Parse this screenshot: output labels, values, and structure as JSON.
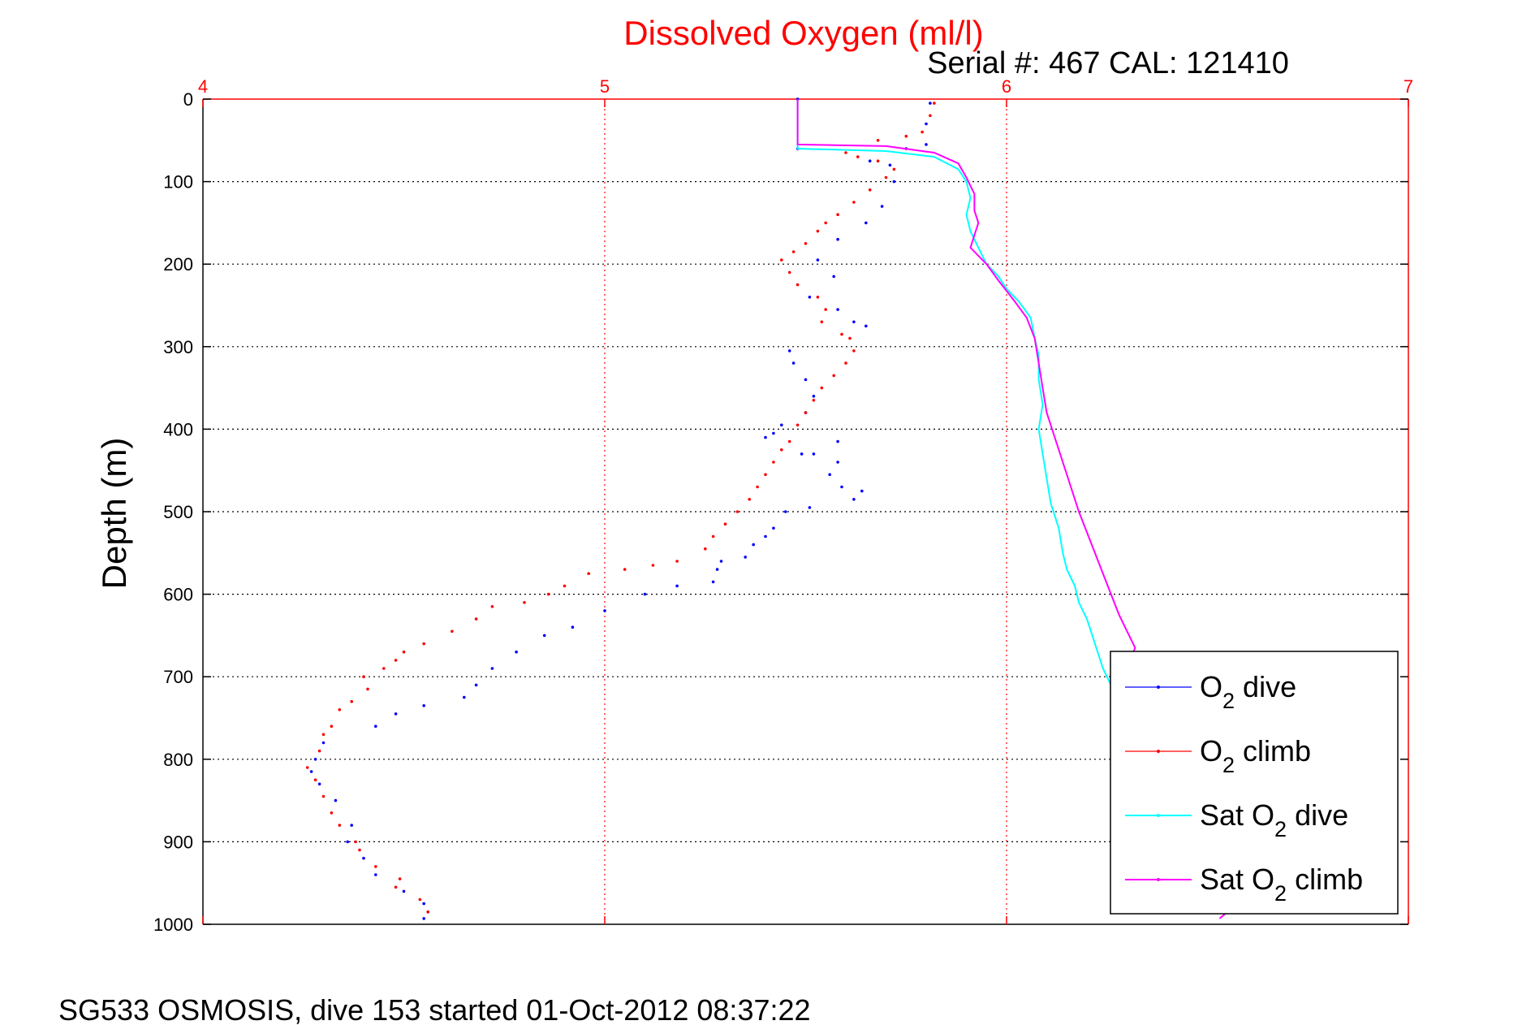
{
  "chart_data": {
    "type": "scatter",
    "title": "Dissolved Oxygen (ml/l)",
    "subtitle": "Serial #: 467  CAL: 121410",
    "xlabel": "",
    "ylabel": "Depth (m)",
    "footer": "SG533 OSMOSIS, dive 153 started 01-Oct-2012 08:37:22",
    "xlim": [
      4,
      7
    ],
    "ylim": [
      0,
      1000
    ],
    "y_reversed": true,
    "x_axis_position": "top",
    "x_ticks": [
      "4",
      "5",
      "6",
      "7"
    ],
    "x_tick_values": [
      4,
      5,
      6,
      7
    ],
    "y_ticks": [
      "0",
      "100",
      "200",
      "300",
      "400",
      "500",
      "600",
      "700",
      "800",
      "900",
      "1000"
    ],
    "y_tick_values": [
      0,
      100,
      200,
      300,
      400,
      500,
      600,
      700,
      800,
      900,
      1000
    ],
    "grid": true,
    "legend_position": "bottom-right",
    "series": [
      {
        "key": "o2_dive",
        "legend_main": "O",
        "legend_sub": "2",
        "legend_rest": " dive",
        "color": "#0000ff",
        "style": "dots",
        "points": [
          [
            5.48,
            0
          ],
          [
            5.48,
            60
          ],
          [
            5.75,
            60
          ],
          [
            5.8,
            55
          ],
          [
            5.8,
            30
          ],
          [
            5.81,
            5
          ],
          [
            5.71,
            80
          ],
          [
            5.66,
            75
          ],
          [
            5.72,
            100
          ],
          [
            5.69,
            130
          ],
          [
            5.65,
            150
          ],
          [
            5.58,
            170
          ],
          [
            5.53,
            195
          ],
          [
            5.57,
            215
          ],
          [
            5.51,
            240
          ],
          [
            5.58,
            255
          ],
          [
            5.62,
            270
          ],
          [
            5.65,
            275
          ],
          [
            5.46,
            305
          ],
          [
            5.47,
            320
          ],
          [
            5.5,
            340
          ],
          [
            5.52,
            360
          ],
          [
            5.5,
            380
          ],
          [
            5.44,
            395
          ],
          [
            5.4,
            410
          ],
          [
            5.42,
            405
          ],
          [
            5.58,
            415
          ],
          [
            5.58,
            440
          ],
          [
            5.52,
            430
          ],
          [
            5.49,
            430
          ],
          [
            5.56,
            455
          ],
          [
            5.59,
            470
          ],
          [
            5.62,
            485
          ],
          [
            5.64,
            475
          ],
          [
            5.51,
            495
          ],
          [
            5.45,
            500
          ],
          [
            5.42,
            520
          ],
          [
            5.4,
            530
          ],
          [
            5.37,
            540
          ],
          [
            5.35,
            555
          ],
          [
            5.29,
            560
          ],
          [
            5.28,
            570
          ],
          [
            5.27,
            585
          ],
          [
            5.18,
            590
          ],
          [
            5.1,
            600
          ],
          [
            5.0,
            620
          ],
          [
            4.92,
            640
          ],
          [
            4.85,
            650
          ],
          [
            4.78,
            670
          ],
          [
            4.72,
            690
          ],
          [
            4.68,
            710
          ],
          [
            4.65,
            725
          ],
          [
            4.55,
            735
          ],
          [
            4.48,
            745
          ],
          [
            4.43,
            760
          ],
          [
            4.3,
            780
          ],
          [
            4.28,
            800
          ],
          [
            4.27,
            815
          ],
          [
            4.29,
            830
          ],
          [
            4.33,
            850
          ],
          [
            4.37,
            880
          ],
          [
            4.36,
            900
          ],
          [
            4.4,
            920
          ],
          [
            4.43,
            940
          ],
          [
            4.5,
            960
          ],
          [
            4.55,
            975
          ],
          [
            4.56,
            985
          ],
          [
            4.55,
            993
          ]
        ]
      },
      {
        "key": "o2_climb",
        "legend_main": "O",
        "legend_sub": "2",
        "legend_rest": " climb",
        "color": "#ff0000",
        "style": "dots",
        "points": [
          [
            4.56,
            985
          ],
          [
            4.54,
            970
          ],
          [
            4.48,
            955
          ],
          [
            4.49,
            945
          ],
          [
            4.43,
            930
          ],
          [
            4.39,
            910
          ],
          [
            4.38,
            900
          ],
          [
            4.34,
            880
          ],
          [
            4.32,
            865
          ],
          [
            4.3,
            845
          ],
          [
            4.28,
            825
          ],
          [
            4.26,
            810
          ],
          [
            4.29,
            790
          ],
          [
            4.3,
            770
          ],
          [
            4.32,
            760
          ],
          [
            4.34,
            740
          ],
          [
            4.37,
            730
          ],
          [
            4.41,
            715
          ],
          [
            4.4,
            700
          ],
          [
            4.45,
            690
          ],
          [
            4.48,
            680
          ],
          [
            4.5,
            670
          ],
          [
            4.55,
            660
          ],
          [
            4.62,
            645
          ],
          [
            4.68,
            630
          ],
          [
            4.72,
            615
          ],
          [
            4.8,
            610
          ],
          [
            4.86,
            600
          ],
          [
            4.9,
            590
          ],
          [
            4.96,
            575
          ],
          [
            5.05,
            570
          ],
          [
            5.12,
            565
          ],
          [
            5.18,
            560
          ],
          [
            5.25,
            545
          ],
          [
            5.27,
            530
          ],
          [
            5.3,
            515
          ],
          [
            5.33,
            500
          ],
          [
            5.36,
            485
          ],
          [
            5.38,
            470
          ],
          [
            5.4,
            455
          ],
          [
            5.42,
            440
          ],
          [
            5.44,
            425
          ],
          [
            5.46,
            415
          ],
          [
            5.48,
            395
          ],
          [
            5.5,
            380
          ],
          [
            5.52,
            365
          ],
          [
            5.54,
            350
          ],
          [
            5.57,
            335
          ],
          [
            5.6,
            320
          ],
          [
            5.62,
            305
          ],
          [
            5.61,
            290
          ],
          [
            5.59,
            285
          ],
          [
            5.54,
            270
          ],
          [
            5.55,
            255
          ],
          [
            5.53,
            240
          ],
          [
            5.48,
            225
          ],
          [
            5.46,
            210
          ],
          [
            5.44,
            195
          ],
          [
            5.47,
            185
          ],
          [
            5.5,
            175
          ],
          [
            5.53,
            160
          ],
          [
            5.55,
            150
          ],
          [
            5.58,
            140
          ],
          [
            5.62,
            125
          ],
          [
            5.66,
            110
          ],
          [
            5.7,
            95
          ],
          [
            5.72,
            85
          ],
          [
            5.68,
            75
          ],
          [
            5.63,
            70
          ],
          [
            5.6,
            65
          ],
          [
            5.68,
            50
          ],
          [
            5.75,
            45
          ],
          [
            5.79,
            40
          ],
          [
            5.81,
            20
          ],
          [
            5.82,
            5
          ]
        ]
      },
      {
        "key": "sat_o2_dive",
        "legend_main": "Sat O",
        "legend_sub": "2",
        "legend_rest": " dive",
        "color": "#00ffff",
        "style": "line",
        "points": [
          [
            5.48,
            0
          ],
          [
            5.48,
            60
          ],
          [
            5.7,
            63
          ],
          [
            5.82,
            70
          ],
          [
            5.88,
            85
          ],
          [
            5.9,
            100
          ],
          [
            5.91,
            120
          ],
          [
            5.9,
            140
          ],
          [
            5.91,
            160
          ],
          [
            5.93,
            180
          ],
          [
            5.95,
            200
          ],
          [
            5.98,
            215
          ],
          [
            6.0,
            230
          ],
          [
            6.03,
            245
          ],
          [
            6.06,
            265
          ],
          [
            6.07,
            290
          ],
          [
            6.08,
            310
          ],
          [
            6.08,
            340
          ],
          [
            6.09,
            370
          ],
          [
            6.08,
            400
          ],
          [
            6.09,
            430
          ],
          [
            6.1,
            460
          ],
          [
            6.11,
            490
          ],
          [
            6.13,
            520
          ],
          [
            6.14,
            550
          ],
          [
            6.15,
            570
          ],
          [
            6.17,
            590
          ],
          [
            6.18,
            610
          ],
          [
            6.2,
            630
          ],
          [
            6.22,
            660
          ],
          [
            6.24,
            690
          ],
          [
            6.26,
            710
          ],
          [
            6.28,
            730
          ],
          [
            6.29,
            740
          ]
        ]
      },
      {
        "key": "sat_o2_climb",
        "legend_main": "Sat O",
        "legend_sub": "2",
        "legend_rest": " climb",
        "color": "#ff00ff",
        "style": "line",
        "points": [
          [
            5.48,
            0
          ],
          [
            5.48,
            55
          ],
          [
            5.7,
            57
          ],
          [
            5.82,
            65
          ],
          [
            5.88,
            78
          ],
          [
            5.9,
            95
          ],
          [
            5.92,
            115
          ],
          [
            5.92,
            135
          ],
          [
            5.93,
            150
          ],
          [
            5.92,
            165
          ],
          [
            5.91,
            180
          ],
          [
            5.95,
            200
          ],
          [
            5.98,
            220
          ],
          [
            6.02,
            245
          ],
          [
            6.05,
            265
          ],
          [
            6.07,
            290
          ],
          [
            6.08,
            320
          ],
          [
            6.09,
            350
          ],
          [
            6.1,
            380
          ],
          [
            6.12,
            410
          ],
          [
            6.14,
            440
          ],
          [
            6.16,
            470
          ],
          [
            6.18,
            500
          ],
          [
            6.2,
            525
          ],
          [
            6.22,
            550
          ],
          [
            6.24,
            575
          ],
          [
            6.26,
            600
          ],
          [
            6.28,
            625
          ],
          [
            6.3,
            645
          ],
          [
            6.32,
            665
          ],
          [
            6.3,
            690
          ],
          [
            6.32,
            710
          ],
          [
            6.35,
            730
          ],
          [
            6.45,
            800
          ],
          [
            6.52,
            880
          ],
          [
            6.54,
            940
          ],
          [
            6.55,
            985
          ],
          [
            6.53,
            993
          ]
        ]
      }
    ]
  }
}
